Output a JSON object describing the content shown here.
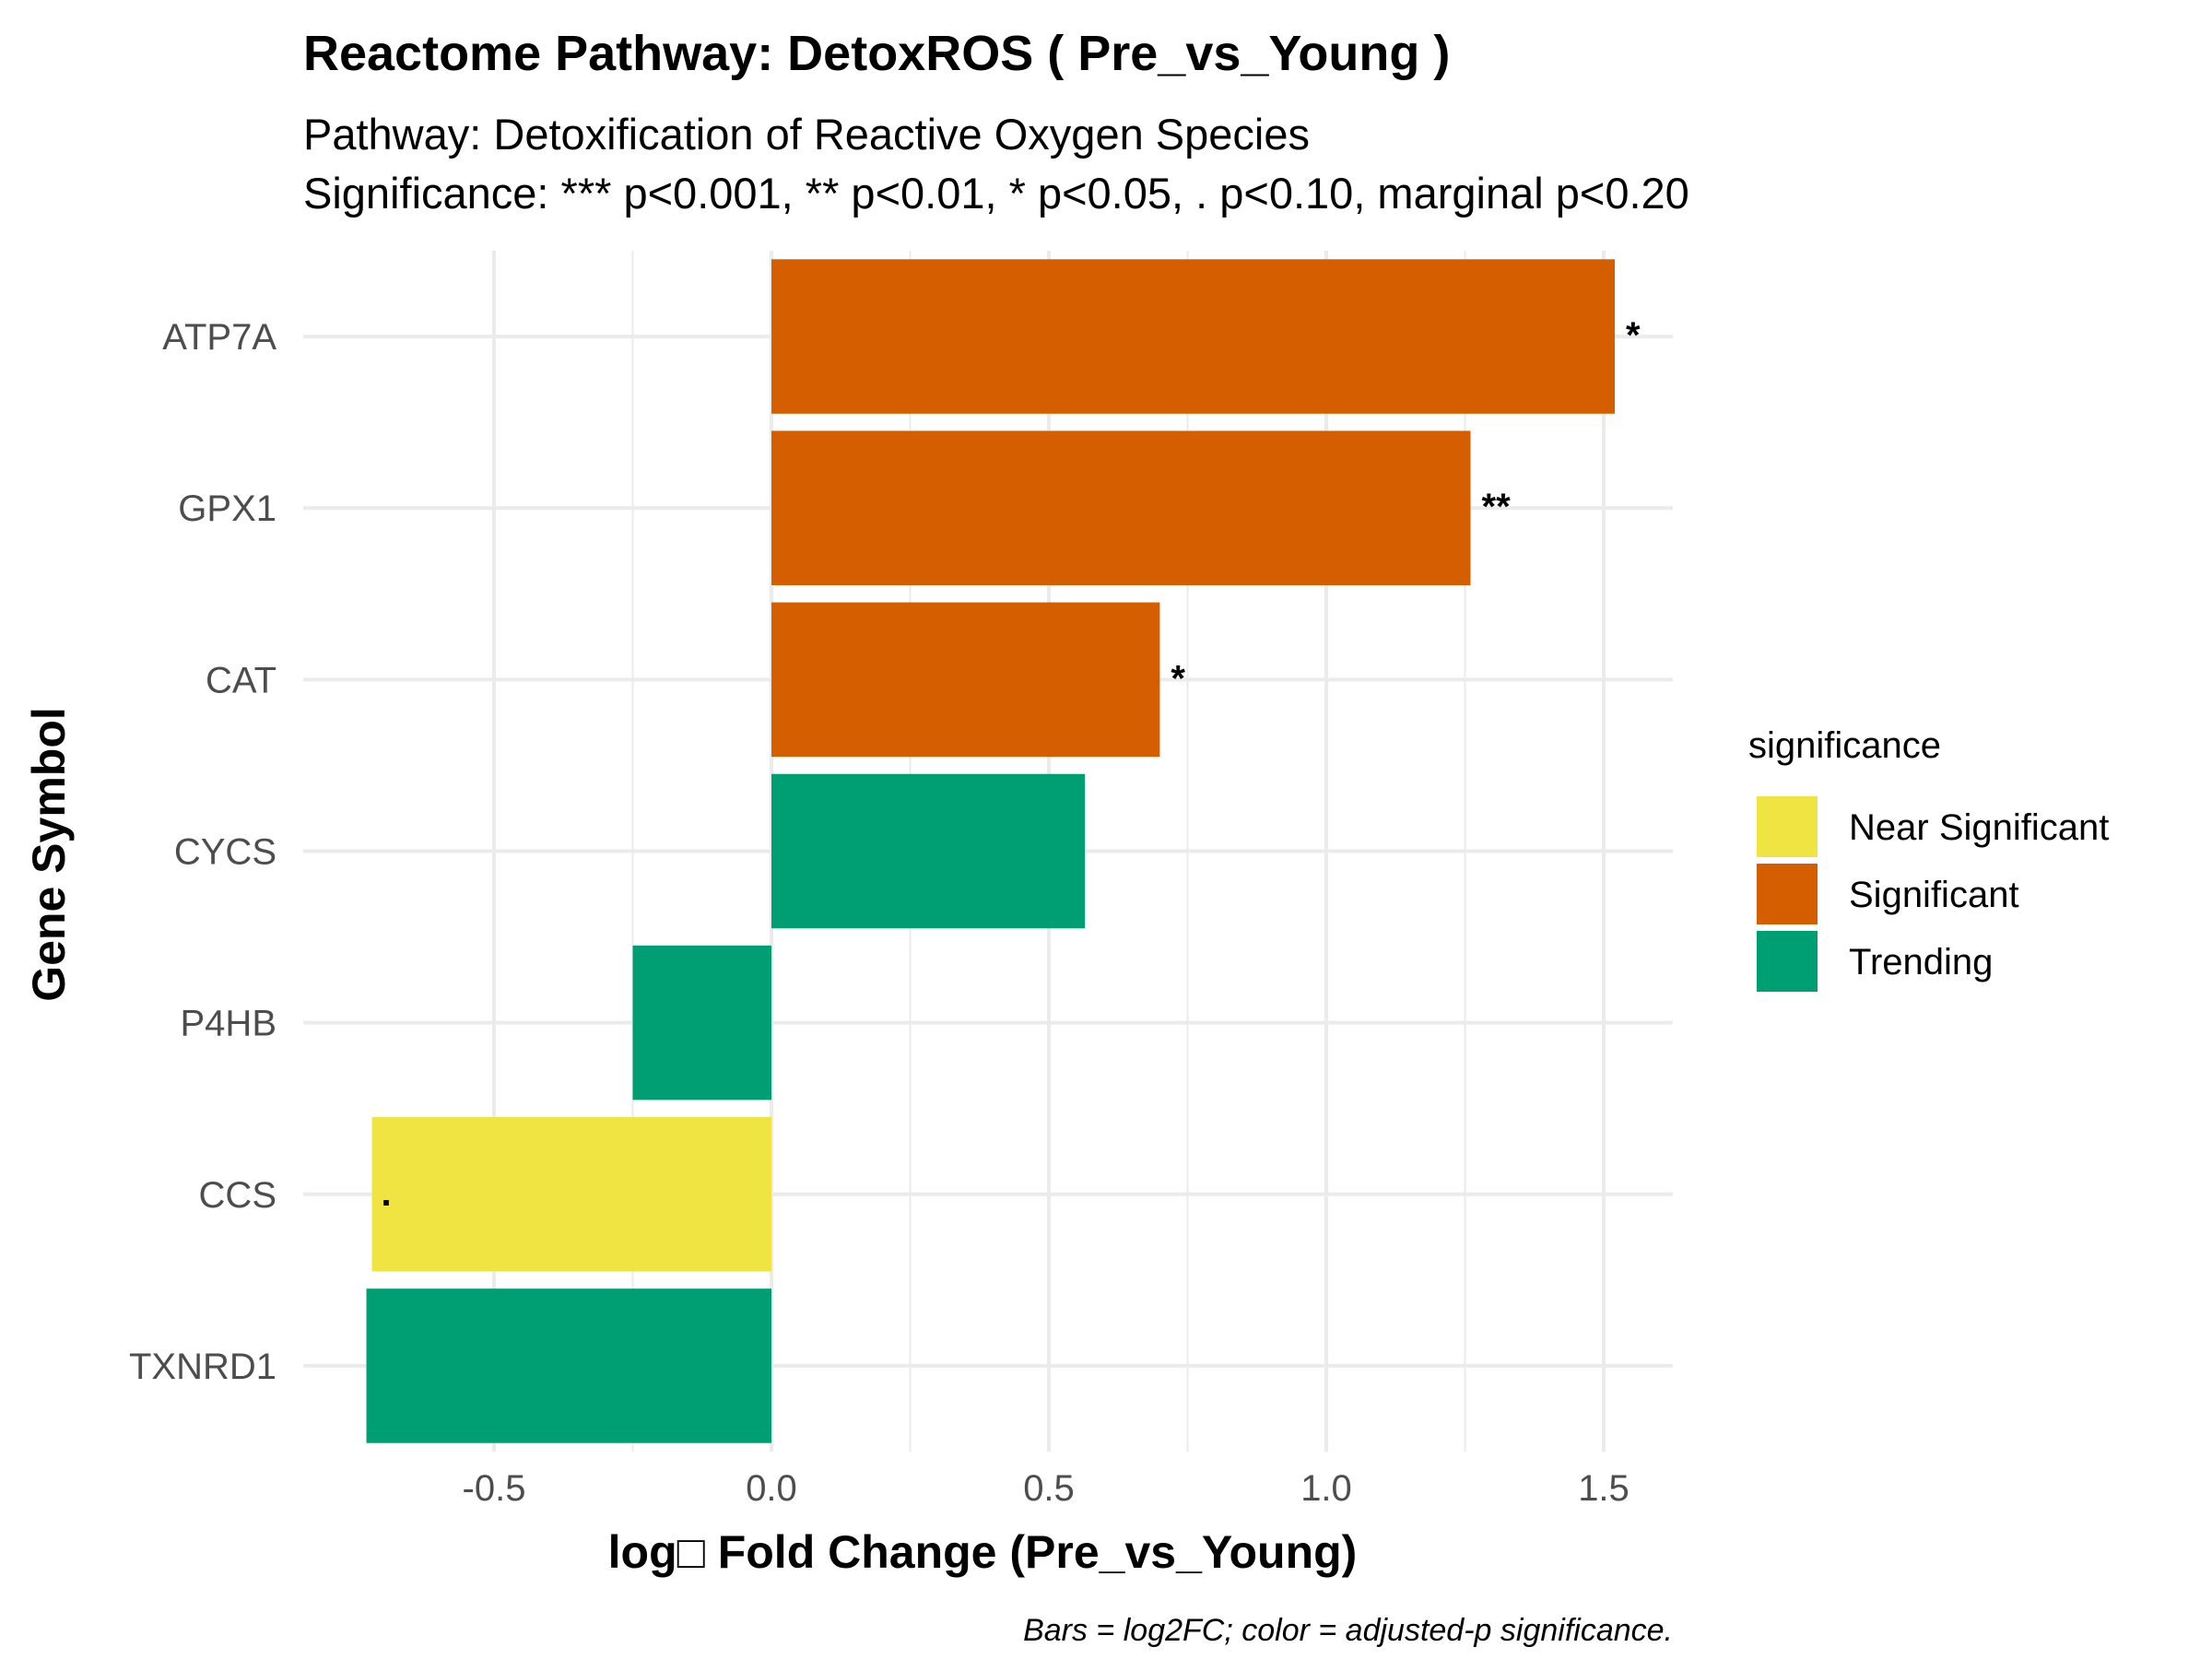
{
  "chart_data": {
    "type": "bar",
    "orientation": "horizontal",
    "title": "Reactome Pathway: DetoxROS ( Pre_vs_Young )",
    "subtitle_lines": [
      "Pathway: Detoxification of Reactive Oxygen Species",
      "Significance: *** p<0.001, ** p<0.01, * p<0.05, . p<0.10, marginal p<0.20"
    ],
    "xlabel": "log□ Fold Change (Pre_vs_Young)",
    "ylabel": "Gene Symbol",
    "caption": "Bars = log2FC; color = adjusted-p significance.",
    "xlim": [
      -0.75,
      1.6
    ],
    "x_ticks": [
      -0.5,
      0.0,
      0.5,
      1.0,
      1.5
    ],
    "x_tick_labels": [
      "-0.5",
      "0.0",
      "0.5",
      "1.0",
      "1.5"
    ],
    "grid": true,
    "legend": {
      "title": "significance",
      "position": "right",
      "items": [
        {
          "label": "Near Significant",
          "color": "#F0E442"
        },
        {
          "label": "Significant",
          "color": "#D55E00"
        },
        {
          "label": "Trending",
          "color": "#009E73"
        }
      ]
    },
    "bars": [
      {
        "gene": "ATP7A",
        "value": 1.52,
        "significance": "Significant",
        "label": "*"
      },
      {
        "gene": "GPX1",
        "value": 1.26,
        "significance": "Significant",
        "label": "**"
      },
      {
        "gene": "CAT",
        "value": 0.7,
        "significance": "Significant",
        "label": "*"
      },
      {
        "gene": "CYCS",
        "value": 0.565,
        "significance": "Trending",
        "label": ""
      },
      {
        "gene": "P4HB",
        "value": -0.25,
        "significance": "Trending",
        "label": ""
      },
      {
        "gene": "CCS",
        "value": -0.72,
        "significance": "Near Significant",
        "label": "."
      },
      {
        "gene": "TXNRD1",
        "value": -0.73,
        "significance": "Trending",
        "label": ""
      }
    ]
  }
}
